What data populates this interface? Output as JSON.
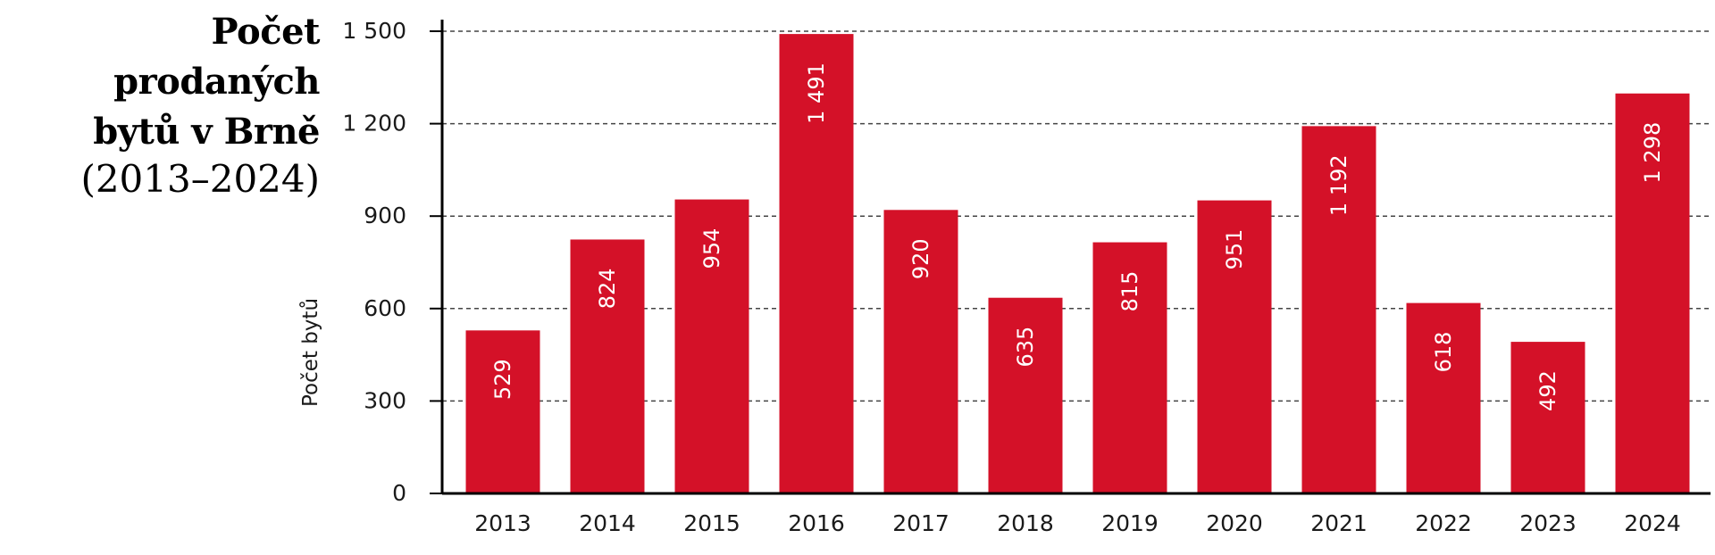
{
  "chart_data": {
    "type": "bar",
    "title_line1": "Počet prodaných",
    "title_line2": "bytů v Brně",
    "subtitle": "(2013–2024)",
    "xlabel": "",
    "ylabel": "Počet bytů",
    "categories": [
      "2013",
      "2014",
      "2015",
      "2016",
      "2017",
      "2018",
      "2019",
      "2020",
      "2021",
      "2022",
      "2023",
      "2024"
    ],
    "values": [
      529,
      824,
      954,
      1491,
      920,
      635,
      815,
      951,
      1192,
      618,
      492,
      1298
    ],
    "data_labels": [
      "529",
      "824",
      "954",
      "1 491",
      "920",
      "635",
      "815",
      "951",
      "1 192",
      "618",
      "492",
      "1 298"
    ],
    "y_ticks": [
      0,
      300,
      600,
      900,
      1200,
      1500
    ],
    "y_tick_labels": [
      "0",
      "300",
      "600",
      "900",
      "1 200",
      "1 500"
    ],
    "ylim": [
      0,
      1500
    ],
    "grid": "horizontal dashed",
    "bar_color": "#d41128",
    "axis_color": "#000000",
    "grid_color": "#444444"
  }
}
